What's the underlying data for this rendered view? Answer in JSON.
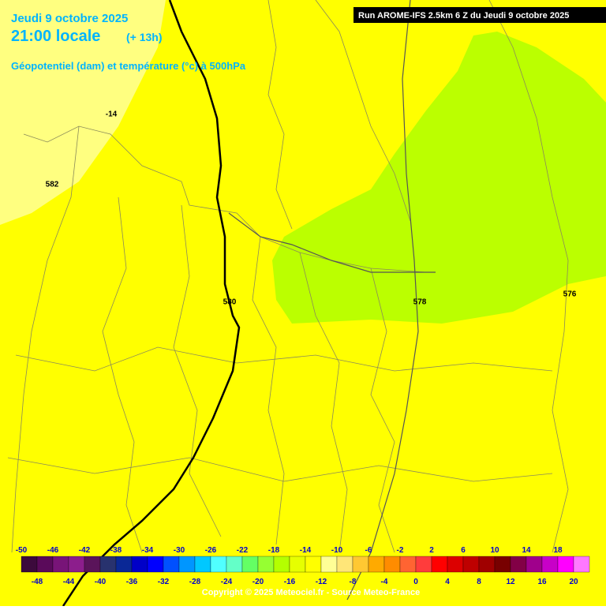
{
  "header": {
    "date": "Jeudi 9 octobre 2025",
    "time": "21:00 locale",
    "lead": "(+ 13h)",
    "subtitle": "Géopotentiel (dam) et température (°c) à 500hPa"
  },
  "run": "Run AROME-IFS 2.5km 6 Z du Jeudi 9 octobre 2025",
  "contour_labels": [
    "-14",
    "582",
    "580",
    "578",
    "576"
  ],
  "scale": {
    "values": [
      -50,
      -48,
      -46,
      -44,
      -42,
      -40,
      -38,
      -36,
      -34,
      -32,
      -30,
      -28,
      -26,
      -24,
      -22,
      -20,
      -18,
      -16,
      -14,
      -12,
      -10,
      -8,
      -6,
      -4,
      -2,
      0,
      2,
      4,
      6,
      8,
      10,
      12,
      14,
      16,
      18,
      20
    ],
    "colors": [
      "#3c0a3c",
      "#5a0a5a",
      "#781478",
      "#8c1e8c",
      "#5a145a",
      "#28326e",
      "#0a2896",
      "#0000c8",
      "#0000ff",
      "#0050ff",
      "#0096ff",
      "#00c8ff",
      "#50ffff",
      "#64ffc8",
      "#64ff64",
      "#96ff32",
      "#b4ff00",
      "#e6ff00",
      "#ffff00",
      "#ffff96",
      "#ffe678",
      "#ffc832",
      "#ffaa00",
      "#ff8c00",
      "#ff6432",
      "#ff3c3c",
      "#ff0000",
      "#dc0000",
      "#be0000",
      "#a00000",
      "#780000",
      "#820046",
      "#a0008c",
      "#c800c8",
      "#ff00ff",
      "#ff78ff"
    ]
  },
  "copyright": "Copyright © 2025 Meteociel.fr - Source Meteo-France"
}
